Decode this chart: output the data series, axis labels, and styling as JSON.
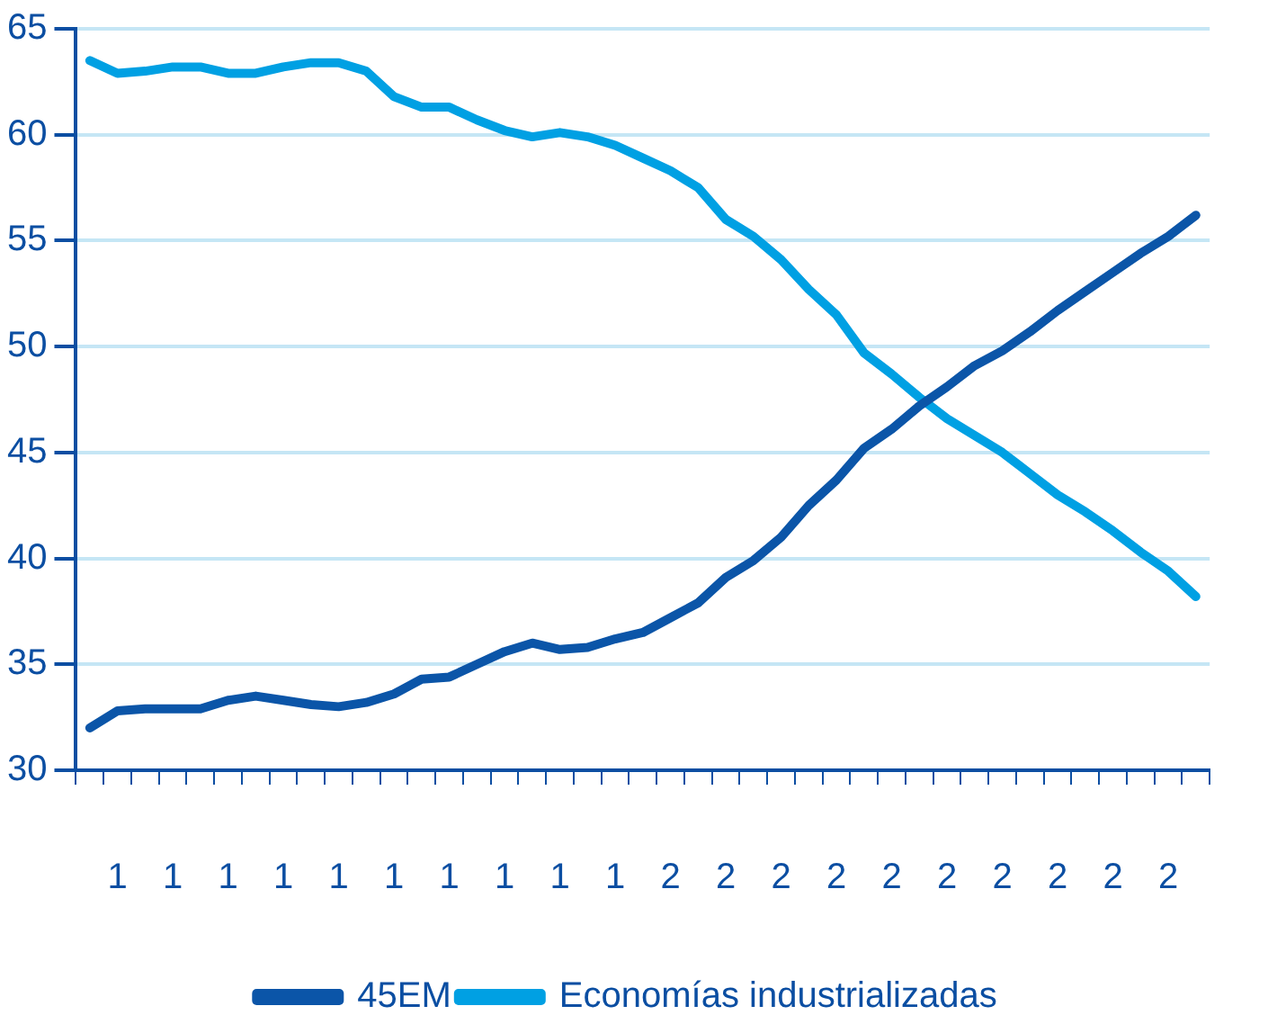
{
  "chart_data": {
    "type": "line",
    "categories": [
      null,
      "1",
      null,
      "1",
      null,
      "1",
      null,
      "1",
      null,
      "1",
      null,
      "1",
      null,
      "1",
      null,
      "1",
      null,
      "1",
      null,
      "1",
      null,
      "2",
      null,
      "2",
      null,
      "2",
      null,
      "2",
      null,
      "2",
      null,
      "2",
      null,
      "2",
      null,
      "2",
      null,
      "2",
      null,
      "2",
      null
    ],
    "series": [
      {
        "name": "45EM",
        "color": "#0b55a8",
        "values": [
          32.0,
          32.8,
          32.9,
          32.9,
          32.9,
          33.3,
          33.5,
          33.3,
          33.1,
          33.0,
          33.2,
          33.6,
          34.3,
          34.4,
          35.0,
          35.6,
          36.0,
          35.7,
          35.8,
          36.2,
          36.5,
          37.2,
          37.9,
          39.1,
          39.9,
          41.0,
          42.5,
          43.7,
          45.2,
          46.1,
          47.2,
          48.1,
          49.1,
          49.8,
          50.7,
          51.7,
          52.6,
          53.5,
          54.4,
          55.2,
          56.2
        ]
      },
      {
        "name": "Economías industrializadas",
        "color": "#00a0e3",
        "values": [
          63.5,
          62.9,
          63.0,
          63.2,
          63.2,
          62.9,
          62.9,
          63.2,
          63.4,
          63.4,
          63.0,
          61.8,
          61.3,
          61.3,
          60.7,
          60.2,
          59.9,
          60.1,
          59.9,
          59.5,
          58.9,
          58.3,
          57.5,
          56.0,
          55.2,
          54.1,
          52.7,
          51.5,
          49.7,
          48.7,
          47.6,
          46.6,
          45.8,
          45.0,
          44.0,
          43.0,
          42.2,
          41.3,
          40.3,
          39.4,
          38.2
        ]
      }
    ],
    "ylim": [
      30,
      65
    ],
    "yticks": [
      30,
      35,
      40,
      45,
      50,
      55,
      60,
      65
    ],
    "grid": "y",
    "legend": "bottom",
    "marker": "none",
    "line_style": "solid"
  }
}
